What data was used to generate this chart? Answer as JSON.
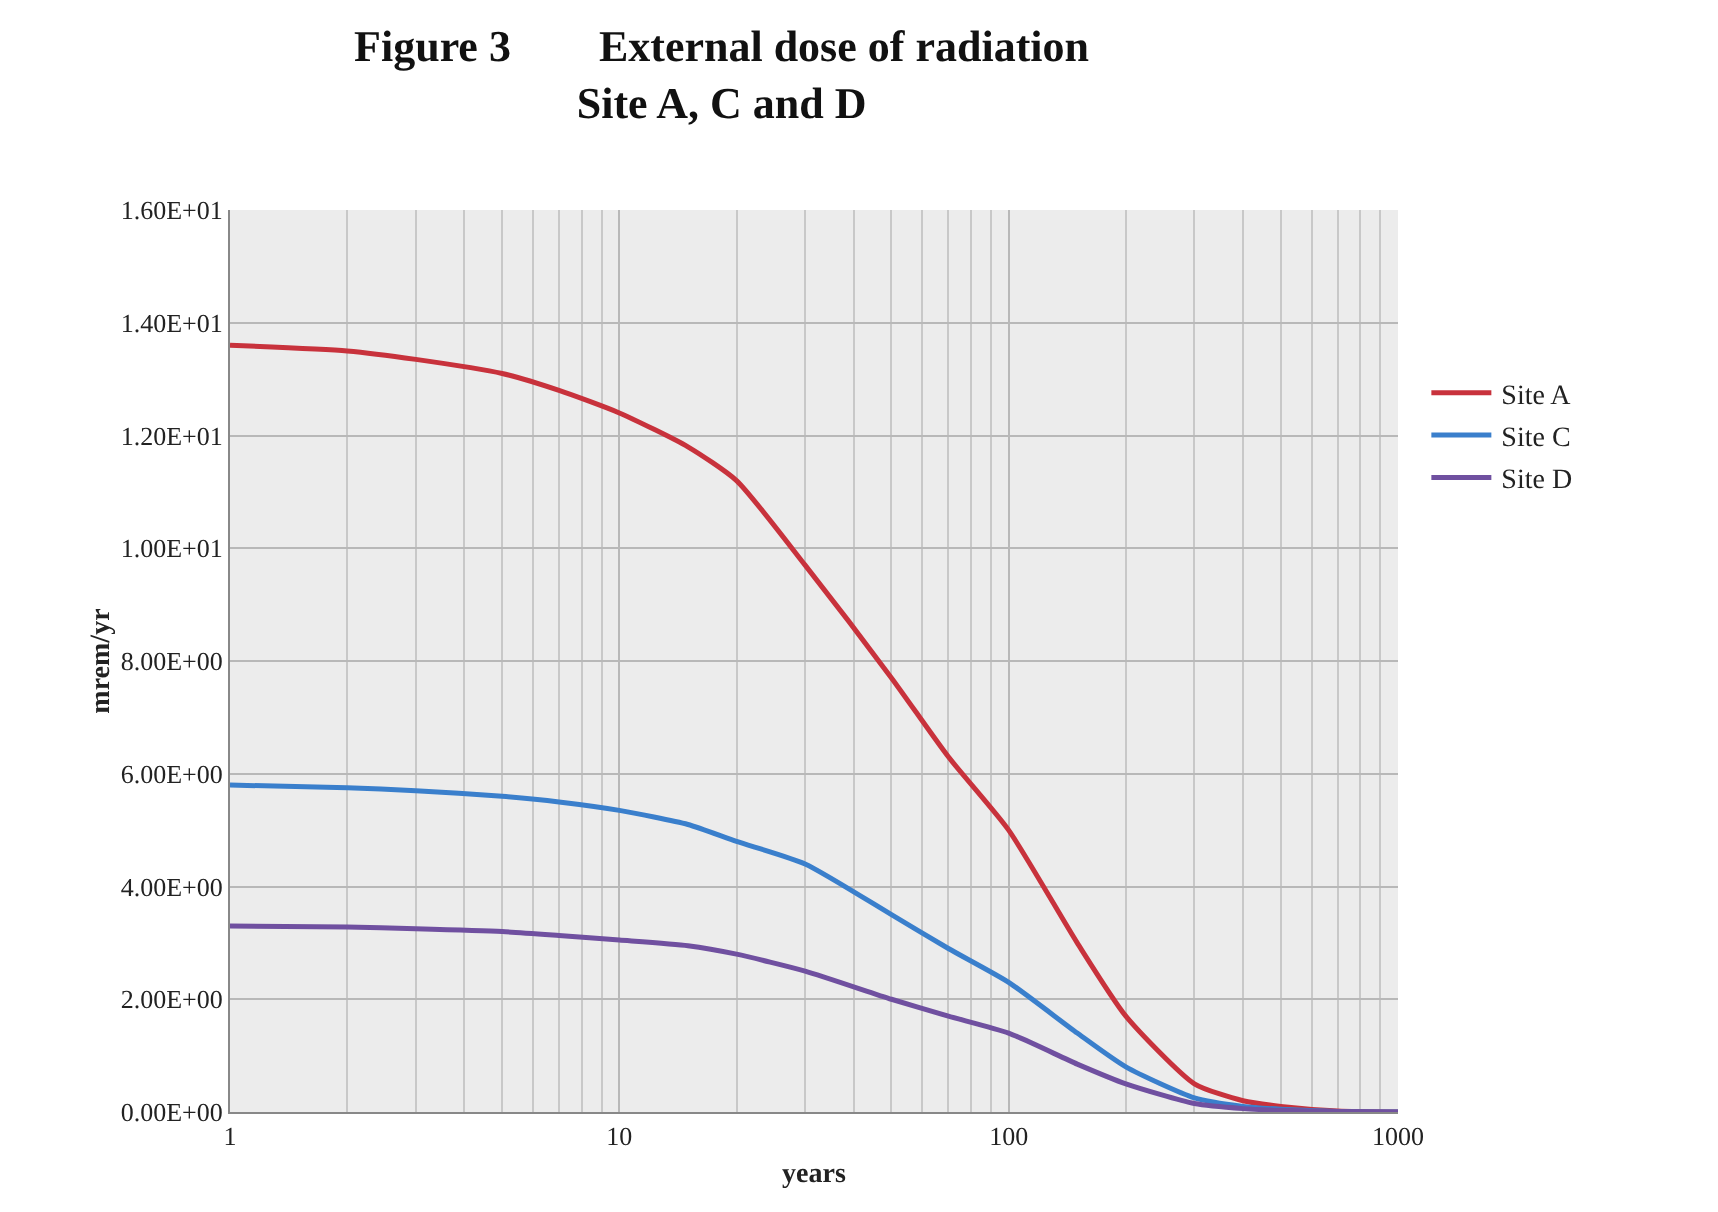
{
  "chart_data": {
    "type": "line",
    "title": "Figure 3        External dose of radiation\nSite A, C and D",
    "xlabel": "years",
    "ylabel": "mrem/yr",
    "x": [
      1,
      2,
      3,
      5,
      7,
      10,
      15,
      20,
      30,
      50,
      70,
      100,
      150,
      200,
      300,
      400,
      500,
      700,
      1000
    ],
    "series": [
      {
        "name": "Site A",
        "color": "#c8323c",
        "values": [
          13.6,
          13.5,
          13.35,
          13.1,
          12.8,
          12.4,
          11.8,
          11.2,
          9.7,
          7.7,
          6.3,
          5.0,
          3.0,
          1.7,
          0.5,
          0.2,
          0.1,
          0.02,
          0
        ]
      },
      {
        "name": "Site C",
        "color": "#3a7fcc",
        "values": [
          5.8,
          5.75,
          5.7,
          5.6,
          5.5,
          5.35,
          5.1,
          4.8,
          4.4,
          3.5,
          2.9,
          2.3,
          1.4,
          0.8,
          0.25,
          0.1,
          0.05,
          0.01,
          0
        ]
      },
      {
        "name": "Site D",
        "color": "#7050a0",
        "values": [
          3.3,
          3.28,
          3.25,
          3.2,
          3.13,
          3.05,
          2.95,
          2.8,
          2.5,
          2.0,
          1.7,
          1.4,
          0.85,
          0.5,
          0.15,
          0.06,
          0.03,
          0.01,
          0
        ]
      }
    ],
    "log": "x",
    "xlim": [
      1,
      1000
    ],
    "xticks": [
      1,
      10,
      100,
      1000
    ],
    "ylim": [
      0,
      16
    ],
    "yticks": [
      {
        "value": 0,
        "label": "0.00E+00"
      },
      {
        "value": 2,
        "label": "2.00E+00"
      },
      {
        "value": 4,
        "label": "4.00E+00"
      },
      {
        "value": 6,
        "label": "6.00E+00"
      },
      {
        "value": 8,
        "label": "8.00E+00"
      },
      {
        "value": 10,
        "label": "1.00E+01"
      },
      {
        "value": 12,
        "label": "1.20E+01"
      },
      {
        "value": 14,
        "label": "1.40E+01"
      },
      {
        "value": 16,
        "label": "1.60E+01"
      }
    ],
    "grid": true,
    "legend": "right",
    "marker": "none",
    "line_style": "solid"
  }
}
